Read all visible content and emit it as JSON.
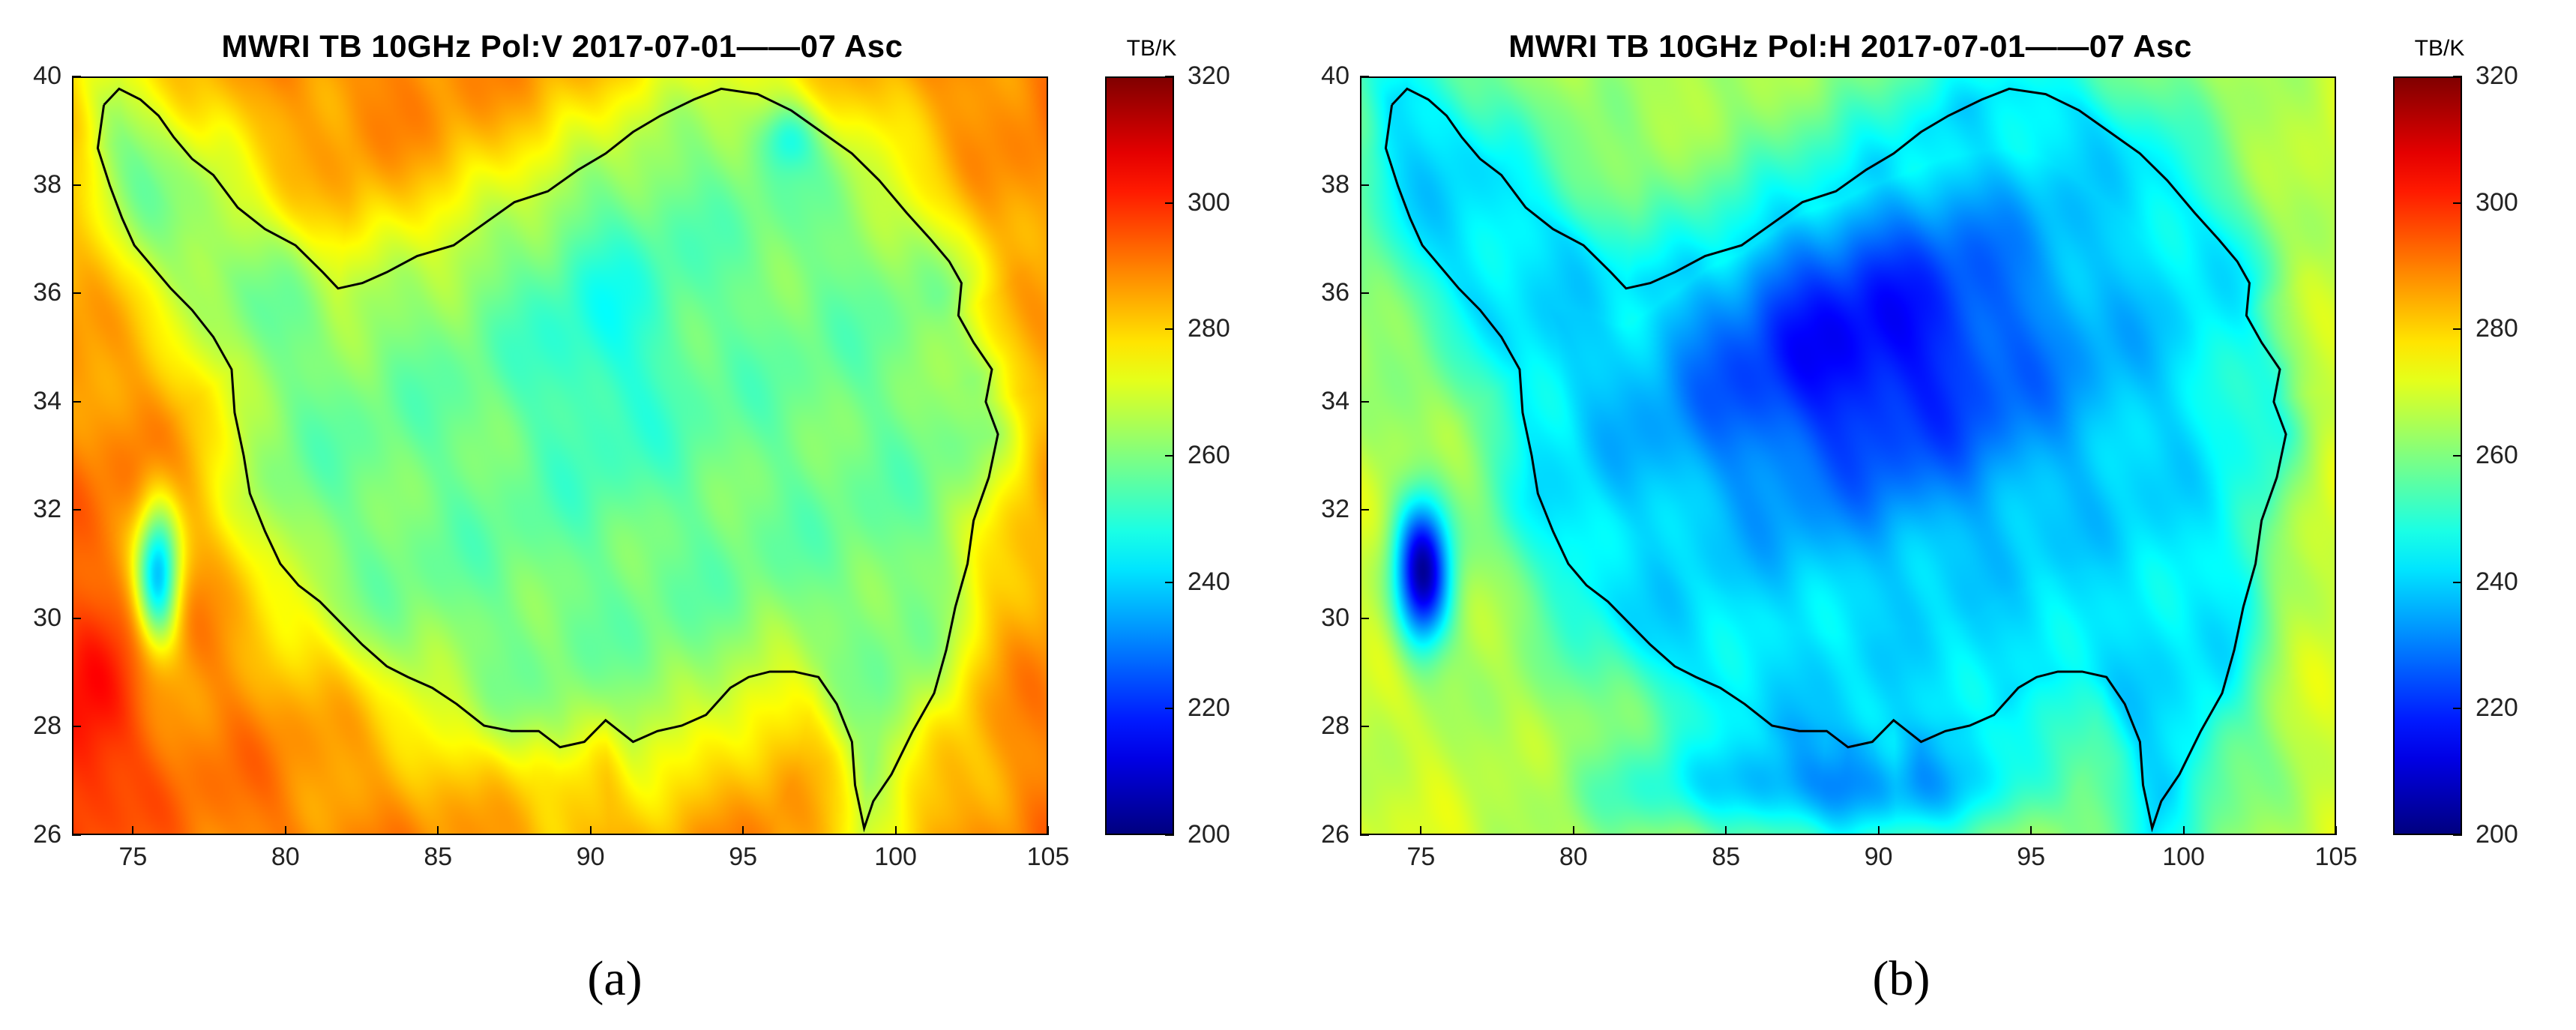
{
  "chart_data": [
    {
      "type": "heatmap",
      "panel_label": "(a)",
      "title": "MWRI TB 10GHz Pol:V 2017-07-01——07 Asc",
      "xlabel": "",
      "ylabel": "",
      "xlim": [
        73,
        105
      ],
      "ylim": [
        26,
        40
      ],
      "x_ticks": [
        "75",
        "80",
        "85",
        "90",
        "95",
        "100",
        "105"
      ],
      "y_ticks": [
        "26",
        "28",
        "30",
        "32",
        "34",
        "36",
        "38",
        "40"
      ],
      "colorbar": {
        "unit": "TB/K",
        "range": [
          200,
          320
        ],
        "ticks": [
          "200",
          "220",
          "240",
          "260",
          "280",
          "300",
          "320"
        ],
        "colormap": "jet"
      },
      "value_summary": {
        "plateau_interior_K": 258,
        "plateau_edge_K": 268,
        "surrounding_lowland_K": 292,
        "southwest_corner_K": 305,
        "low_spot_30N_76E_K": 236
      }
    },
    {
      "type": "heatmap",
      "panel_label": "(b)",
      "title": "MWRI TB 10GHz Pol:H 2017-07-01——07 Asc",
      "xlabel": "",
      "ylabel": "",
      "xlim": [
        73,
        105
      ],
      "ylim": [
        26,
        40
      ],
      "x_ticks": [
        "75",
        "80",
        "85",
        "90",
        "95",
        "100",
        "105"
      ],
      "y_ticks": [
        "26",
        "28",
        "30",
        "32",
        "34",
        "36",
        "38",
        "40"
      ],
      "colorbar": {
        "unit": "TB/K",
        "range": [
          200,
          320
        ],
        "ticks": [
          "200",
          "220",
          "240",
          "260",
          "280",
          "300",
          "320"
        ],
        "colormap": "jet"
      },
      "value_summary": {
        "plateau_interior_K": 215,
        "plateau_edge_K": 242,
        "surrounding_lowland_K": 270,
        "east_region_K": 282,
        "low_spot_31N_75E_K": 202
      }
    }
  ]
}
